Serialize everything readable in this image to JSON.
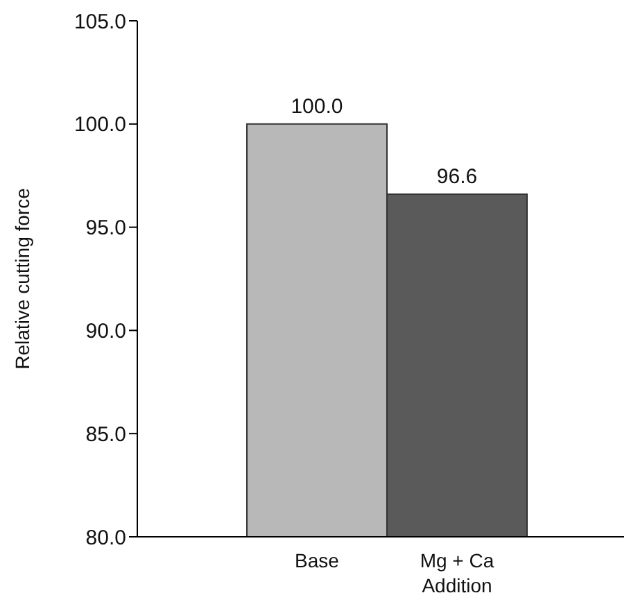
{
  "chart_data": {
    "type": "bar",
    "ylabel": "Relative cutting force",
    "categories": [
      "Base",
      "Mg + Ca Addition"
    ],
    "values": [
      100.0,
      96.6
    ],
    "colors": [
      "#b8b8b8",
      "#5a5a5a"
    ],
    "value_labels": [
      "100.0",
      "96.6"
    ],
    "ylim": [
      80,
      105
    ],
    "yticks": [
      {
        "value": 80,
        "label": "80.0"
      },
      {
        "value": 85,
        "label": "85.0"
      },
      {
        "value": 90,
        "label": "90.0"
      },
      {
        "value": 95,
        "label": "95.0"
      },
      {
        "value": 100,
        "label": "100.0"
      },
      {
        "value": 105,
        "label": "105.0"
      }
    ],
    "grid": false,
    "legend": false
  }
}
